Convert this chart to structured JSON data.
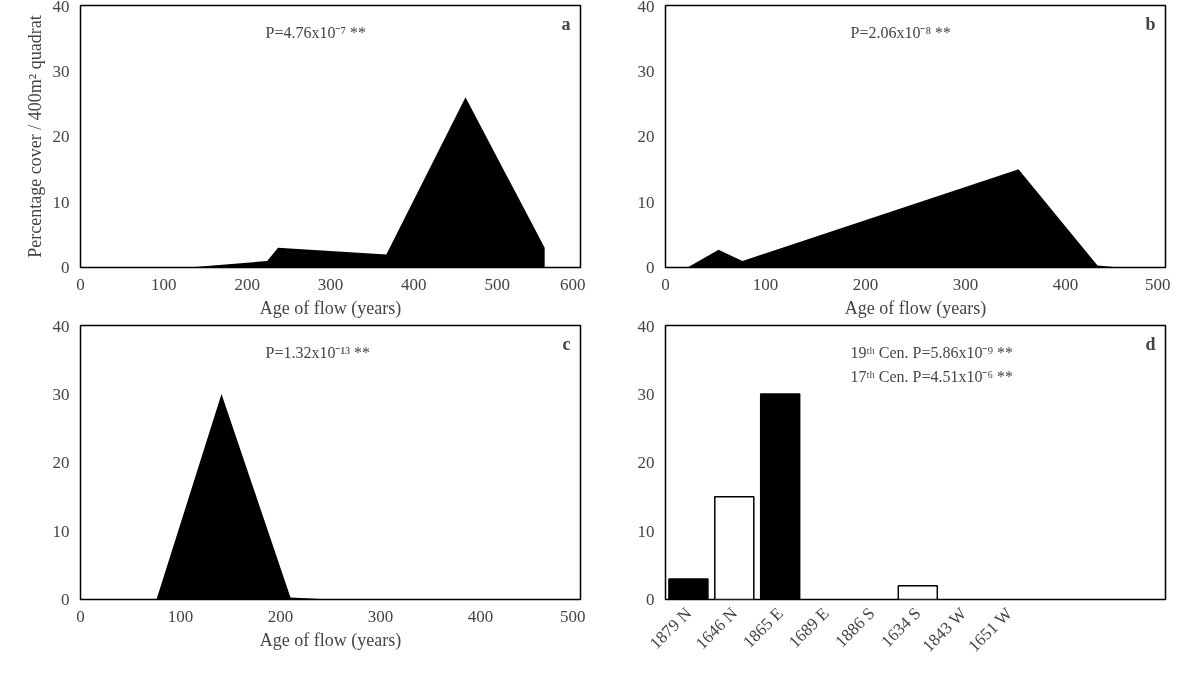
{
  "chart_data": [
    {
      "type": "area",
      "ylabel": "Percentage cover / 400m² quadrat",
      "xlabel": "Age of flow (years)",
      "x": [
        130,
        224,
        237,
        367,
        462,
        557,
        557
      ],
      "values": [
        0,
        1,
        3,
        2,
        26,
        3,
        0
      ],
      "color": "#000000",
      "xlim": [
        0,
        600
      ],
      "xticks": [
        0,
        100,
        200,
        300,
        400,
        500,
        600
      ],
      "ylim": [
        0,
        40
      ],
      "yticks": [
        0,
        10,
        20,
        30,
        40
      ],
      "grid": false,
      "annotations": [
        "a",
        "P=4.76x10⁻⁷ **"
      ]
    },
    {
      "type": "area",
      "xlabel": "Age of flow (years)",
      "x": [
        22,
        53,
        77,
        353,
        432,
        454
      ],
      "values": [
        0,
        2.7,
        1,
        15,
        0.3,
        0
      ],
      "color": "#000000",
      "xlim": [
        0,
        500
      ],
      "xticks": [
        0,
        100,
        200,
        300,
        400,
        500
      ],
      "ylim": [
        0,
        40
      ],
      "yticks": [
        0,
        10,
        20,
        30,
        40
      ],
      "grid": false,
      "annotations": [
        "b",
        "P=2.06x10⁻⁸ **"
      ]
    },
    {
      "type": "area",
      "xlabel": "Age of flow (years)",
      "x": [
        76,
        141,
        210,
        250
      ],
      "values": [
        0,
        30,
        0.3,
        0
      ],
      "color": "#000000",
      "xlim": [
        0,
        500
      ],
      "xticks": [
        0,
        100,
        200,
        300,
        400,
        500
      ],
      "ylim": [
        0,
        40
      ],
      "yticks": [
        0,
        10,
        20,
        30,
        40
      ],
      "grid": false,
      "annotations": [
        "c",
        "P=1.32x10⁻¹³ **"
      ]
    },
    {
      "type": "bar",
      "categories": [
        "1879 N",
        "1646 N",
        "1865 E",
        "1689 E",
        "1886 S",
        "1634 S",
        "1843 W",
        "1651 W"
      ],
      "values": [
        3,
        15,
        30,
        0,
        0,
        2,
        0,
        0
      ],
      "colors": [
        "#000000",
        "#ffffff",
        "#000000",
        "#ffffff",
        "#000000",
        "#ffffff",
        "#000000",
        "#ffffff"
      ],
      "ylim": [
        0,
        40
      ],
      "yticks": [
        0,
        10,
        20,
        30,
        40
      ],
      "grid": false,
      "annotations": [
        "d",
        "19ᵗʰ Cen. P=5.86x10⁻⁹ **",
        "17ᵗʰ Cen. P=4.51x10⁻⁶ **"
      ]
    }
  ]
}
